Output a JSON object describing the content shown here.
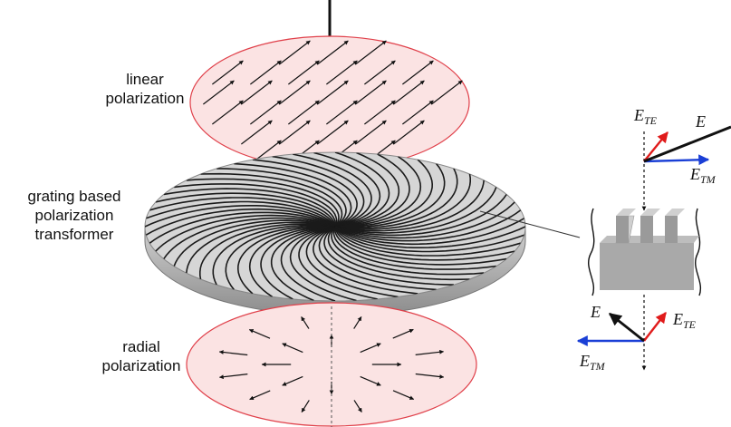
{
  "labels": {
    "linear": [
      "linear",
      "polarization"
    ],
    "transformer": [
      "grating based",
      "polarization",
      "transformer"
    ],
    "radial": [
      "radial",
      "polarization"
    ]
  },
  "symbols": {
    "E": "E",
    "E_vec": "E⃗",
    "TE": "TE",
    "TM": "TM"
  },
  "colors": {
    "disk_outline": "#e0404a",
    "disk_fill": "#fbe3e3",
    "te_arrow": "#e01b1b",
    "tm_arrow": "#1a3fd6",
    "grating_fill": "#a9a9a9",
    "grating_top": "#cfcfcf",
    "transformer_edge": "#b0b0b0"
  }
}
